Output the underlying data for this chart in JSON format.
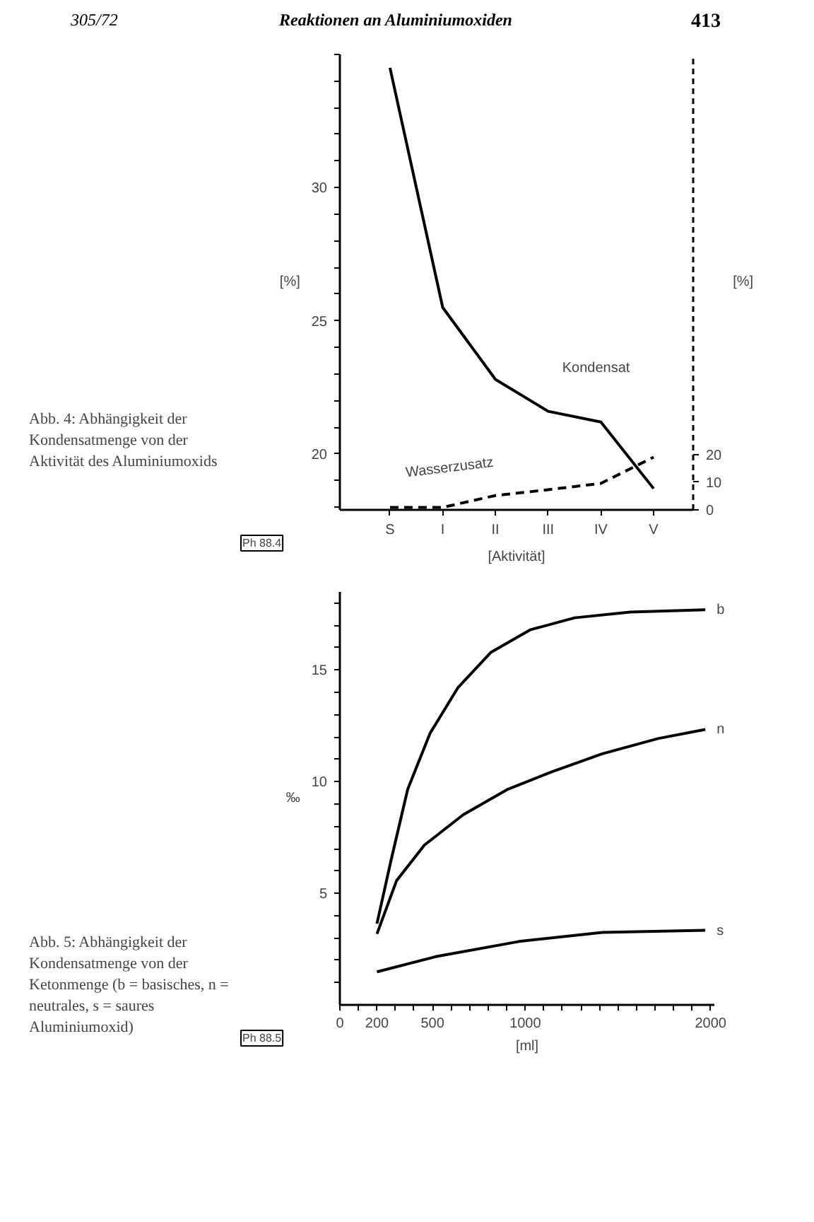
{
  "chart_data": [
    {
      "type": "line",
      "xlabel": "[Aktivität]",
      "ylabel": "[%]",
      "y2label": "[%]",
      "annotations": [
        "305/72",
        "Reaktionen an Aluminiumoxiden",
        "413",
        "Ph 88.4",
        "Abb. 4: Abhängigkeit der Kondensatmenge von der Aktivität des Aluminiumoxids"
      ],
      "categories": [
        "S",
        "I",
        "II",
        "III",
        "IV",
        "V"
      ],
      "y2lim": [
        0,
        165
      ],
      "y2ticks": [
        0,
        10,
        20
      ],
      "ylim": [
        17.9,
        35
      ],
      "yticks": [
        {
          "value": 18,
          "label": null
        },
        {
          "value": 19,
          "label": null
        },
        20,
        {
          "value": 21,
          "label": null
        },
        {
          "value": 22,
          "label": null
        },
        {
          "value": 23,
          "label": null
        },
        {
          "value": 24,
          "label": null
        },
        25,
        {
          "value": 26,
          "label": null
        },
        {
          "value": 27,
          "label": null
        },
        {
          "value": 28,
          "label": null
        },
        {
          "value": 29,
          "label": null
        },
        30,
        {
          "value": 31,
          "label": null
        },
        {
          "value": 32,
          "label": null
        },
        {
          "value": 33,
          "label": null
        },
        {
          "value": 34,
          "label": null
        },
        {
          "value": 35,
          "label": null
        }
      ],
      "grid": false,
      "series": [
        {
          "name": "Kondensat",
          "color": "#000000",
          "line_style": "solid",
          "values": [
            34.5,
            25.5,
            22.8,
            21.6,
            21.2,
            18.7
          ]
        },
        {
          "name": "Wasserzusatz",
          "color": "#000000",
          "line_style": "dashed",
          "axis": "y2",
          "values": [
            0.9,
            0.9,
            5.2,
            7.3,
            9.6,
            19.1
          ]
        }
      ]
    },
    {
      "type": "line",
      "xlabel": "[ml]",
      "ylabel": "‰",
      "annotations": [
        "Ph 88.5",
        "Abb. 5: Abhängigkeit der Kondensatmenge von der Ketonmenge (b = basisches, n = neutrales, s = saures Aluminiumoxid)"
      ],
      "xlim": [
        0,
        2020
      ],
      "xticks": [
        0,
        {
          "value": 100,
          "label": null
        },
        200,
        {
          "value": 300,
          "label": null
        },
        {
          "value": 400,
          "label": null
        },
        500,
        {
          "value": 600,
          "label": null
        },
        {
          "value": 700,
          "label": null
        },
        {
          "value": 800,
          "label": null
        },
        {
          "value": 900,
          "label": null
        },
        1000,
        {
          "value": 1100,
          "label": null
        },
        {
          "value": 1200,
          "label": null
        },
        {
          "value": 1300,
          "label": null
        },
        {
          "value": 1400,
          "label": null
        },
        {
          "value": 1500,
          "label": null
        },
        {
          "value": 1600,
          "label": null
        },
        {
          "value": 1700,
          "label": null
        },
        {
          "value": 1800,
          "label": null
        },
        {
          "value": 1900,
          "label": null
        },
        2000
      ],
      "ylim": [
        0,
        18.5
      ],
      "yticks": [
        {
          "value": 1,
          "label": null
        },
        {
          "value": 2,
          "label": null
        },
        {
          "value": 3,
          "label": null
        },
        {
          "value": 4,
          "label": null
        },
        5,
        {
          "value": 6,
          "label": null
        },
        {
          "value": 7,
          "label": null
        },
        {
          "value": 8,
          "label": null
        },
        {
          "value": 9,
          "label": null
        },
        10,
        {
          "value": 11,
          "label": null
        },
        {
          "value": 12,
          "label": null
        },
        {
          "value": 13,
          "label": null
        },
        {
          "value": 14,
          "label": null
        },
        15,
        {
          "value": 16,
          "label": null
        },
        {
          "value": 17,
          "label": null
        },
        {
          "value": 18,
          "label": null
        }
      ],
      "grid": false,
      "series": [
        {
          "name": "b",
          "color": "#000000",
          "line_style": "solid",
          "x": [
            200,
            276,
            366,
            486,
            636,
            816,
            1026,
            1266,
            1566,
            1971
          ],
          "values": [
            3.64,
            6.48,
            9.66,
            12.16,
            14.2,
            15.8,
            16.8,
            17.34,
            17.6,
            17.7
          ]
        },
        {
          "name": "n",
          "color": "#000000",
          "line_style": "solid",
          "x": [
            200,
            306,
            456,
            666,
            906,
            1146,
            1416,
            1716,
            1971
          ],
          "values": [
            3.18,
            5.57,
            7.16,
            8.52,
            9.66,
            10.45,
            11.25,
            11.93,
            12.34
          ]
        },
        {
          "name": "s",
          "color": "#000000",
          "line_style": "solid",
          "x": [
            200,
            516,
            966,
            1416,
            1971
          ],
          "values": [
            1.48,
            2.16,
            2.84,
            3.25,
            3.34
          ]
        }
      ]
    }
  ]
}
